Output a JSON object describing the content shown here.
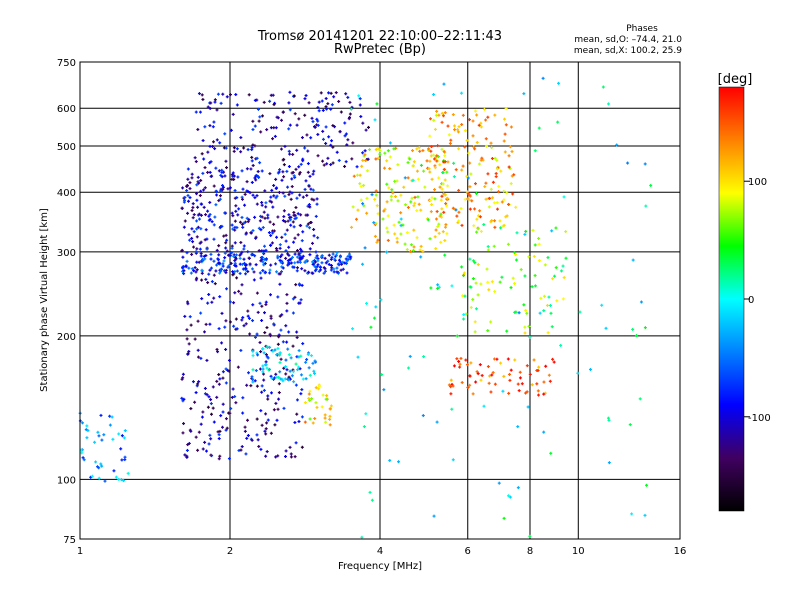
{
  "chart_data": {
    "type": "scatter",
    "title": "Tromsø 20141201 22:10:00–22:11:43",
    "subtitle": "RwPretec (Bp)",
    "xlabel": "Frequency [MHz]",
    "ylabel": "Stationary phase Virtual Height [km]",
    "x_scale": "log",
    "y_scale": "log",
    "xlim": [
      1,
      16
    ],
    "ylim": [
      75,
      750
    ],
    "x_ticks": [
      1,
      2,
      4,
      6,
      8,
      10,
      16
    ],
    "y_ticks": [
      75,
      100,
      200,
      300,
      400,
      500,
      600,
      750
    ],
    "grid": true,
    "stats": {
      "heading": "Phases",
      "line_o": "mean, sd,O: –74.4, 21.0",
      "line_x": "mean, sd,X: 100.2, 25.9"
    },
    "colorbar": {
      "label": "[deg]",
      "range": [
        -180,
        180
      ],
      "ticks": [
        100,
        0,
        -100
      ],
      "colors": [
        "#ff0000",
        "#ff8000",
        "#ffff00",
        "#00ff00",
        "#00ffff",
        "#0080ff",
        "#0000ff",
        "#400060",
        "#000000"
      ]
    },
    "series": [
      {
        "type": "cluster",
        "freq": [
          1.6,
          3.5
        ],
        "height": [
          270,
          300
        ],
        "phase": -80,
        "count": 260
      },
      {
        "type": "cluster",
        "freq": [
          1.6,
          3.0
        ],
        "height": [
          300,
          450
        ],
        "phase": -100,
        "count": 340
      },
      {
        "type": "cluster",
        "freq": [
          1.7,
          3.8
        ],
        "height": [
          450,
          650
        ],
        "phase": -110,
        "count": 200
      },
      {
        "type": "cluster",
        "freq": [
          3.5,
          5.5
        ],
        "height": [
          300,
          500
        ],
        "phase": 100,
        "count": 160
      },
      {
        "type": "cluster",
        "freq": [
          5.0,
          7.5
        ],
        "height": [
          330,
          600
        ],
        "phase": 120,
        "count": 180
      },
      {
        "type": "cluster",
        "freq": [
          1.6,
          2.8
        ],
        "height": [
          200,
          270
        ],
        "phase": -110,
        "count": 100
      },
      {
        "type": "cluster",
        "freq": [
          1.6,
          2.8
        ],
        "height": [
          110,
          200
        ],
        "phase": -110,
        "count": 200
      },
      {
        "type": "cluster",
        "freq": [
          2.2,
          3.0
        ],
        "height": [
          160,
          190
        ],
        "phase": -20,
        "count": 70
      },
      {
        "type": "cluster",
        "freq": [
          2.8,
          3.2
        ],
        "height": [
          130,
          160
        ],
        "phase": 100,
        "count": 30
      },
      {
        "type": "cluster",
        "freq": [
          1.0,
          1.25
        ],
        "height": [
          98,
          140
        ],
        "phase": -40,
        "count": 45
      },
      {
        "type": "cluster",
        "freq": [
          5.5,
          9.0
        ],
        "height": [
          150,
          180
        ],
        "phase": 150,
        "count": 70
      },
      {
        "type": "cluster",
        "freq": [
          5.8,
          9.5
        ],
        "height": [
          200,
          350
        ],
        "phase": 60,
        "count": 90
      },
      {
        "type": "cluster",
        "freq": [
          3.5,
          14
        ],
        "height": [
          75,
          700
        ],
        "phase": 0,
        "count": 110
      }
    ]
  }
}
